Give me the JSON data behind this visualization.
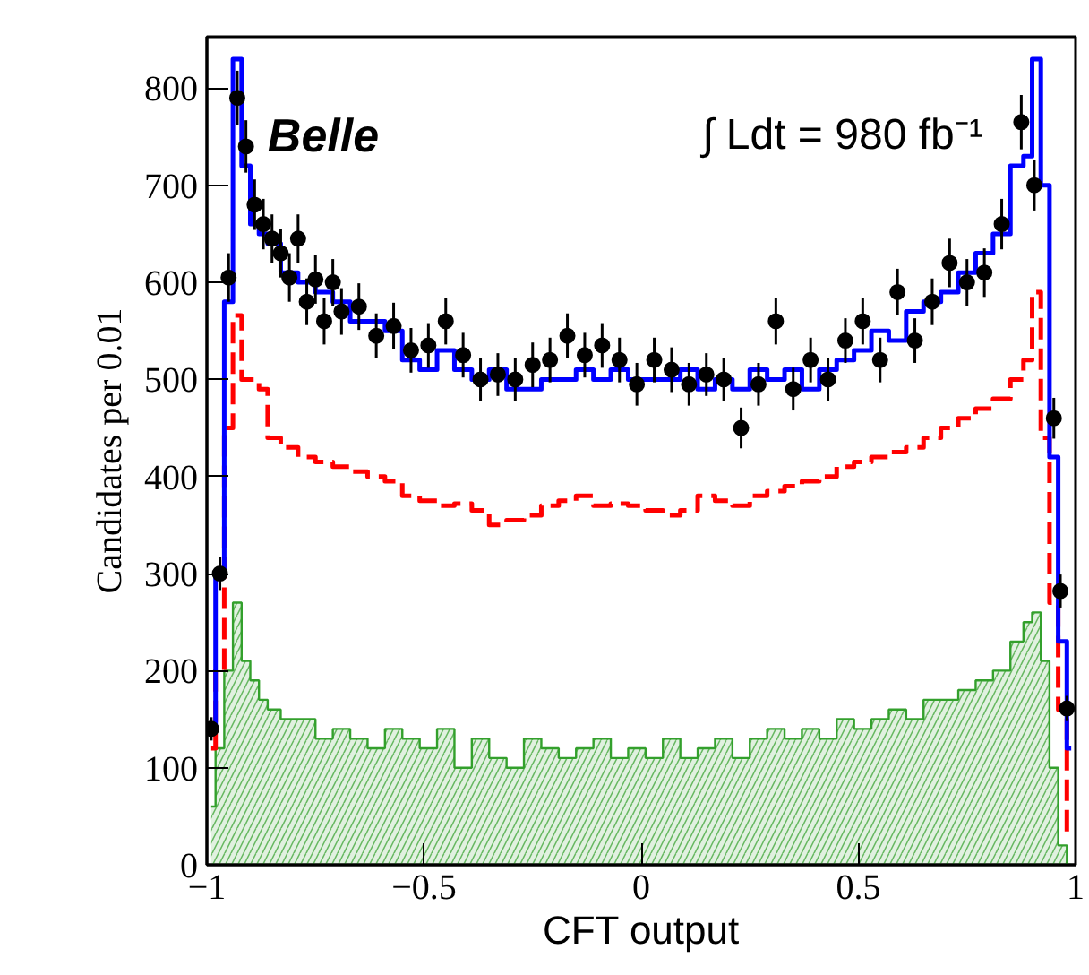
{
  "chart_data": {
    "type": "step",
    "xlabel": "CFT output",
    "ylabel": "Candidates per 0.01",
    "xlim": [
      -1,
      1
    ],
    "ylim": [
      0,
      853
    ],
    "xticks": [
      {
        "value": -1,
        "label": "−1"
      },
      {
        "value": -0.5,
        "label": "−0.5"
      },
      0,
      0.5,
      1
    ],
    "yticks": [
      0,
      100,
      200,
      300,
      400,
      500,
      600,
      700,
      800
    ],
    "grid": false,
    "annotations": [
      "Belle",
      "∫ Ldt = 980 fb⁻¹"
    ],
    "series": [
      {
        "type": "area",
        "color": "#33a02c",
        "x": [
          -0.99,
          -0.97,
          -0.95,
          -0.93,
          -0.91,
          -0.89,
          -0.87,
          -0.85,
          -0.81,
          -0.77,
          -0.73,
          -0.69,
          -0.65,
          -0.61,
          -0.57,
          -0.53,
          -0.49,
          -0.45,
          -0.41,
          -0.37,
          -0.33,
          -0.29,
          -0.25,
          -0.21,
          -0.17,
          -0.13,
          -0.09,
          -0.05,
          -0.01,
          0.03,
          0.07,
          0.11,
          0.15,
          0.19,
          0.23,
          0.27,
          0.31,
          0.35,
          0.39,
          0.43,
          0.47,
          0.51,
          0.55,
          0.59,
          0.63,
          0.67,
          0.71,
          0.75,
          0.79,
          0.83,
          0.87,
          0.89,
          0.91,
          0.93,
          0.95,
          0.97,
          0.99
        ],
        "values": [
          60,
          120,
          200,
          270,
          210,
          190,
          170,
          160,
          150,
          150,
          130,
          140,
          130,
          120,
          140,
          130,
          120,
          140,
          100,
          130,
          110,
          100,
          130,
          120,
          110,
          120,
          130,
          110,
          120,
          110,
          130,
          110,
          120,
          130,
          110,
          130,
          140,
          130,
          140,
          130,
          150,
          140,
          150,
          160,
          150,
          170,
          170,
          180,
          190,
          200,
          230,
          250,
          260,
          210,
          100,
          20,
          0
        ]
      },
      {
        "color": "#ff0000",
        "line_style": "dashed",
        "x": [
          -0.99,
          -0.97,
          -0.95,
          -0.93,
          -0.91,
          -0.89,
          -0.87,
          -0.85,
          -0.81,
          -0.77,
          -0.73,
          -0.69,
          -0.65,
          -0.61,
          -0.57,
          -0.53,
          -0.49,
          -0.45,
          -0.41,
          -0.37,
          -0.33,
          -0.29,
          -0.25,
          -0.21,
          -0.17,
          -0.13,
          -0.09,
          -0.05,
          -0.01,
          0.03,
          0.07,
          0.11,
          0.15,
          0.19,
          0.23,
          0.27,
          0.31,
          0.35,
          0.39,
          0.43,
          0.47,
          0.51,
          0.55,
          0.59,
          0.63,
          0.67,
          0.71,
          0.75,
          0.79,
          0.83,
          0.87,
          0.89,
          0.91,
          0.93,
          0.95,
          0.97,
          0.99
        ],
        "values": [
          120,
          200,
          450,
          566,
          500,
          500,
          490,
          440,
          430,
          420,
          415,
          410,
          405,
          400,
          395,
          380,
          375,
          370,
          372,
          365,
          350,
          355,
          360,
          370,
          375,
          380,
          370,
          372,
          370,
          365,
          360,
          365,
          380,
          375,
          370,
          380,
          385,
          390,
          395,
          400,
          410,
          415,
          420,
          425,
          430,
          440,
          450,
          460,
          470,
          480,
          500,
          520,
          590,
          440,
          270,
          160,
          30
        ]
      },
      {
        "color": "#0000ff",
        "line_style": "solid",
        "x": [
          -0.99,
          -0.97,
          -0.95,
          -0.93,
          -0.91,
          -0.89,
          -0.87,
          -0.85,
          -0.81,
          -0.77,
          -0.73,
          -0.69,
          -0.65,
          -0.61,
          -0.57,
          -0.53,
          -0.49,
          -0.45,
          -0.41,
          -0.37,
          -0.33,
          -0.29,
          -0.25,
          -0.21,
          -0.17,
          -0.13,
          -0.09,
          -0.05,
          -0.01,
          0.03,
          0.07,
          0.11,
          0.15,
          0.19,
          0.23,
          0.27,
          0.31,
          0.35,
          0.39,
          0.43,
          0.47,
          0.51,
          0.55,
          0.59,
          0.63,
          0.67,
          0.71,
          0.75,
          0.79,
          0.83,
          0.87,
          0.89,
          0.91,
          0.93,
          0.95,
          0.97,
          0.99
        ],
        "values": [
          140,
          300,
          580,
          830,
          720,
          660,
          650,
          640,
          610,
          600,
          590,
          580,
          560,
          560,
          550,
          520,
          510,
          530,
          510,
          500,
          510,
          490,
          490,
          500,
          500,
          510,
          500,
          510,
          500,
          500,
          500,
          510,
          490,
          500,
          490,
          510,
          500,
          510,
          490,
          510,
          520,
          530,
          550,
          540,
          570,
          580,
          590,
          610,
          630,
          650,
          720,
          730,
          830,
          700,
          420,
          230,
          120
        ]
      },
      {
        "type": "scatter",
        "color": "#000000",
        "marker": "circle",
        "x": [
          -0.99,
          -0.97,
          -0.95,
          -0.93,
          -0.91,
          -0.89,
          -0.87,
          -0.85,
          -0.83,
          -0.81,
          -0.79,
          -0.77,
          -0.75,
          -0.73,
          -0.71,
          -0.69,
          -0.65,
          -0.61,
          -0.57,
          -0.53,
          -0.49,
          -0.45,
          -0.41,
          -0.37,
          -0.33,
          -0.29,
          -0.25,
          -0.21,
          -0.17,
          -0.13,
          -0.09,
          -0.05,
          -0.01,
          0.03,
          0.07,
          0.11,
          0.15,
          0.19,
          0.23,
          0.27,
          0.31,
          0.35,
          0.39,
          0.43,
          0.47,
          0.51,
          0.55,
          0.59,
          0.63,
          0.67,
          0.71,
          0.75,
          0.79,
          0.83,
          0.875,
          0.905,
          0.95,
          0.965,
          0.98
        ],
        "values": [
          140,
          300,
          605,
          790,
          740,
          680,
          660,
          645,
          630,
          605,
          645,
          580,
          603,
          560,
          600,
          570,
          575,
          545,
          555,
          530,
          535,
          560,
          525,
          500,
          505,
          500,
          515,
          520,
          545,
          525,
          535,
          520,
          495,
          520,
          510,
          495,
          505,
          500,
          450,
          495,
          560,
          490,
          520,
          500,
          540,
          560,
          520,
          590,
          540,
          580,
          620,
          600,
          610,
          660,
          765,
          700,
          460,
          282,
          161
        ],
        "errors": [
          12,
          17,
          25,
          28,
          27,
          26,
          26,
          25,
          25,
          25,
          25,
          24,
          25,
          24,
          24,
          24,
          24,
          23,
          24,
          23,
          23,
          24,
          23,
          22,
          22,
          22,
          23,
          23,
          23,
          23,
          23,
          23,
          22,
          23,
          23,
          22,
          22,
          22,
          21,
          22,
          24,
          22,
          23,
          22,
          23,
          24,
          23,
          24,
          23,
          24,
          25,
          24,
          25,
          26,
          28,
          26,
          21,
          17,
          13
        ]
      }
    ]
  }
}
